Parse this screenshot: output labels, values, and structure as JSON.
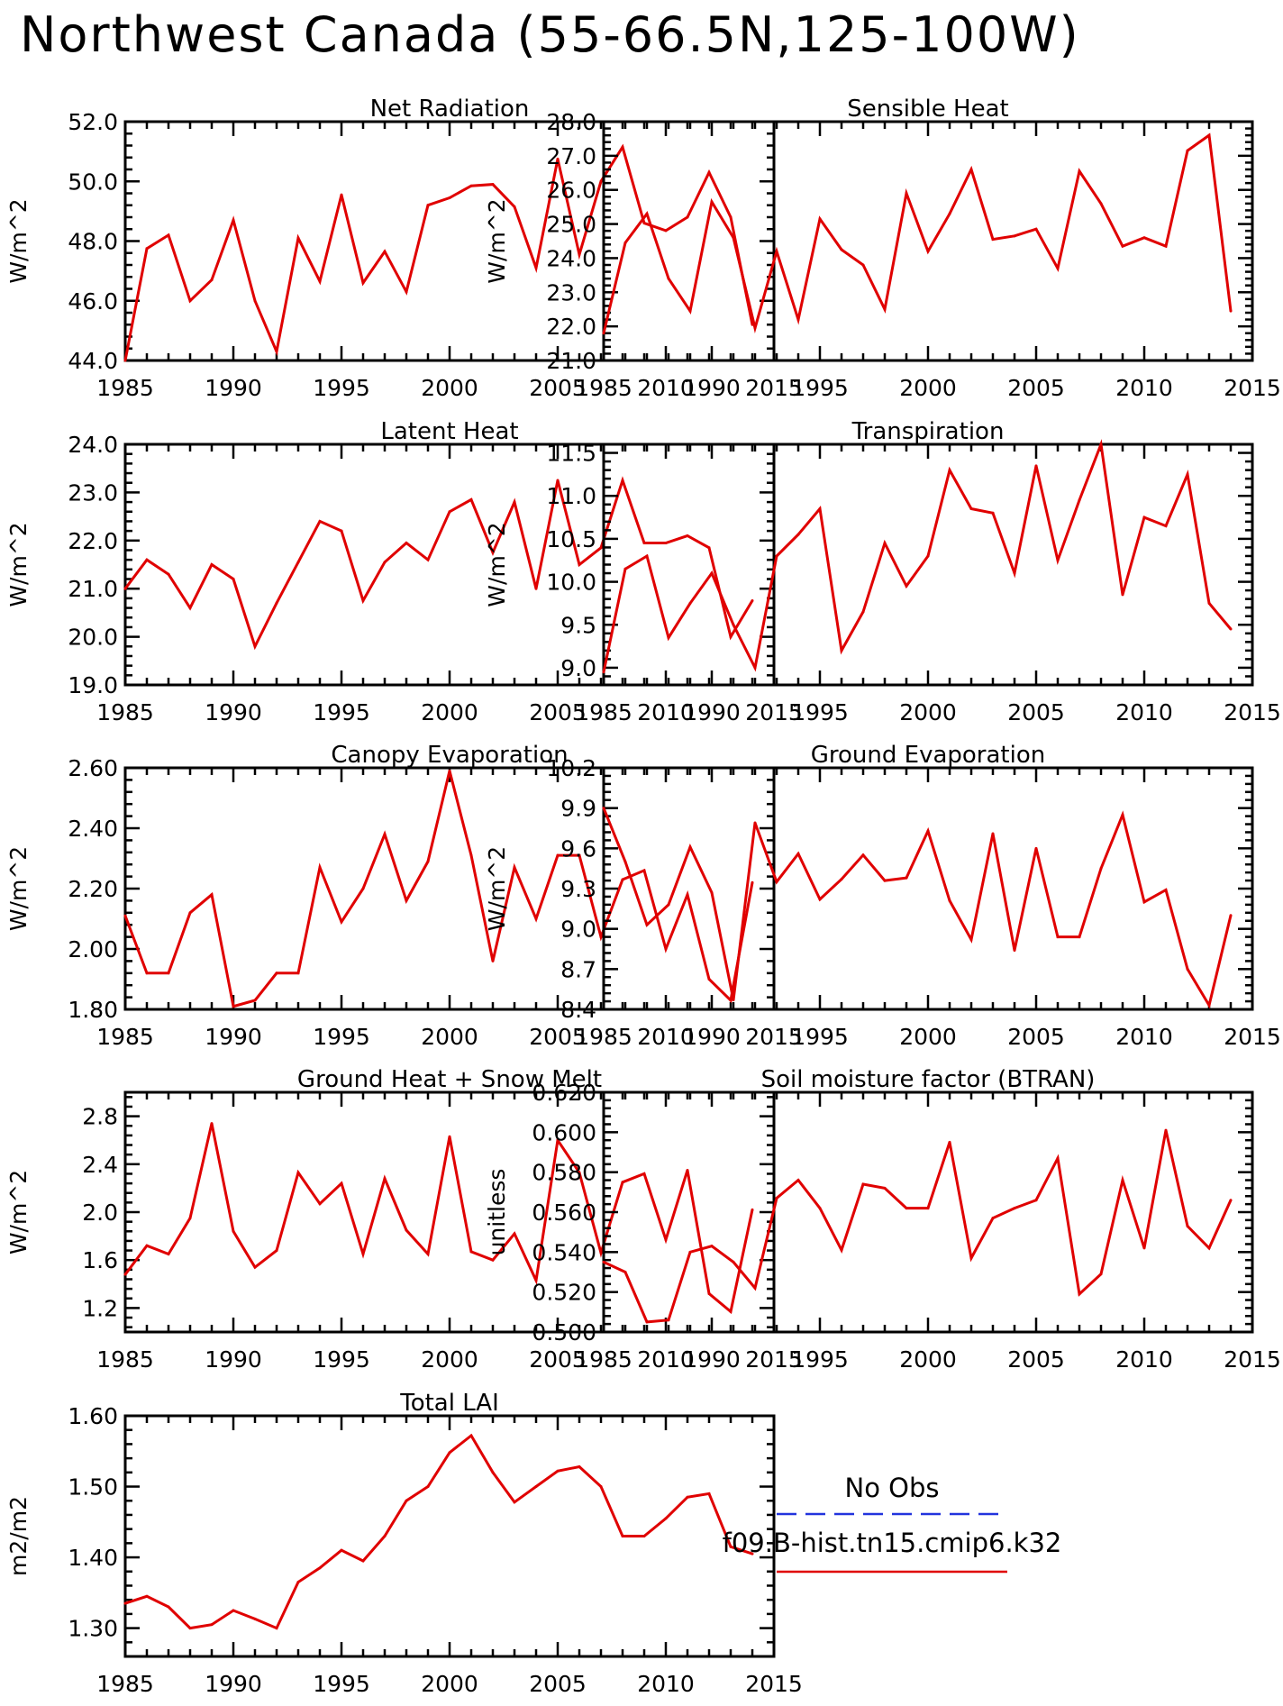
{
  "page": {
    "title": "Northwest Canada (55-66.5N,125-100W)"
  },
  "legend": [
    {
      "label": "No Obs",
      "color": "#2233dd",
      "dash": true
    },
    {
      "label": "f09.B-hist.tn15.cmip6.k32",
      "color": "#e00000",
      "dash": false
    }
  ],
  "series_color": "#e00000",
  "chart_data": [
    {
      "type": "line",
      "title": "Net Radiation",
      "ylabel": "W/m^2",
      "xlim": [
        1985,
        2015
      ],
      "ylim": [
        44.0,
        52.0
      ],
      "xticks": [
        1985,
        1990,
        1995,
        2000,
        2005,
        2010,
        2015
      ],
      "yticks": [
        44.0,
        46.0,
        48.0,
        50.0,
        52.0
      ],
      "ytick_labels": [
        "44.0",
        "46.0",
        "48.0",
        "50.0",
        "52.0"
      ],
      "x_start": 1985,
      "values": [
        44.0,
        47.75,
        48.2,
        46.0,
        46.7,
        48.7,
        46.0,
        44.3,
        48.1,
        46.65,
        49.55,
        46.6,
        47.65,
        46.3,
        49.2,
        49.45,
        49.85,
        49.9,
        49.15,
        47.1,
        50.75,
        47.55,
        50.0,
        51.15,
        48.6,
        48.35,
        48.8,
        50.3,
        48.8,
        45.2
      ]
    },
    {
      "type": "line",
      "title": "Sensible Heat",
      "ylabel": "W/m^2",
      "xlim": [
        1985,
        2015
      ],
      "ylim": [
        21.0,
        28.0
      ],
      "xticks": [
        1985,
        1990,
        1995,
        2000,
        2005,
        2010,
        2015
      ],
      "yticks": [
        21.0,
        22.0,
        23.0,
        24.0,
        25.0,
        26.0,
        27.0,
        28.0
      ],
      "ytick_labels": [
        "21.0",
        "22.0",
        "23.0",
        "24.0",
        "25.0",
        "26.0",
        "27.0",
        "28.0"
      ],
      "x_start": 1985,
      "values": [
        21.8,
        24.45,
        25.3,
        23.4,
        22.45,
        25.65,
        24.6,
        21.95,
        24.2,
        22.2,
        25.15,
        24.25,
        23.8,
        22.5,
        25.9,
        24.2,
        25.3,
        26.6,
        24.55,
        24.65,
        24.85,
        23.7,
        26.55,
        25.6,
        24.35,
        24.6,
        24.35,
        27.15,
        27.6,
        22.45
      ]
    },
    {
      "type": "line",
      "title": "Latent Heat",
      "ylabel": "W/m^2",
      "xlim": [
        1985,
        2015
      ],
      "ylim": [
        19.0,
        24.0
      ],
      "xticks": [
        1985,
        1990,
        1995,
        2000,
        2005,
        2010,
        2015
      ],
      "yticks": [
        19.0,
        20.0,
        21.0,
        22.0,
        23.0,
        24.0
      ],
      "ytick_labels": [
        "19.0",
        "20.0",
        "21.0",
        "22.0",
        "23.0",
        "24.0"
      ],
      "x_start": 1985,
      "values": [
        21.0,
        21.6,
        21.3,
        20.6,
        21.5,
        21.2,
        19.8,
        20.7,
        21.55,
        22.4,
        22.2,
        20.75,
        21.55,
        21.95,
        21.6,
        22.6,
        22.85,
        21.75,
        22.8,
        21.0,
        23.25,
        21.5,
        21.85,
        23.25,
        21.95,
        21.95,
        22.1,
        21.85,
        20.0,
        20.75
      ]
    },
    {
      "type": "line",
      "title": "Transpiration",
      "ylabel": "W/m^2",
      "xlim": [
        1985,
        2015
      ],
      "ylim": [
        8.8,
        11.6
      ],
      "xticks": [
        1985,
        1990,
        1995,
        2000,
        2005,
        2010,
        2015
      ],
      "yticks": [
        9.0,
        9.5,
        10.0,
        10.5,
        11.0,
        11.5
      ],
      "ytick_labels": [
        "9.0",
        "9.5",
        "10.0",
        "10.5",
        "11.0",
        "11.5"
      ],
      "x_start": 1985,
      "values": [
        8.95,
        10.15,
        10.3,
        9.35,
        9.75,
        10.1,
        9.5,
        9.0,
        10.3,
        10.55,
        10.85,
        9.2,
        9.65,
        10.45,
        9.95,
        10.3,
        11.3,
        10.85,
        10.8,
        10.1,
        11.35,
        10.25,
        10.95,
        11.6,
        9.85,
        10.75,
        10.65,
        11.25,
        9.75,
        9.45
      ]
    },
    {
      "type": "line",
      "title": "Canopy Evaporation",
      "ylabel": "W/m^2",
      "xlim": [
        1985,
        2015
      ],
      "ylim": [
        1.8,
        2.6
      ],
      "xticks": [
        1985,
        1990,
        1995,
        2000,
        2005,
        2010,
        2015
      ],
      "yticks": [
        1.8,
        2.0,
        2.2,
        2.4,
        2.6
      ],
      "ytick_labels": [
        "1.80",
        "2.00",
        "2.20",
        "2.40",
        "2.60"
      ],
      "x_start": 1985,
      "values": [
        2.11,
        1.92,
        1.92,
        2.12,
        2.18,
        1.81,
        1.83,
        1.92,
        1.92,
        2.27,
        2.09,
        2.2,
        2.38,
        2.16,
        2.29,
        2.59,
        2.31,
        1.96,
        2.27,
        2.1,
        2.31,
        2.31,
        2.04,
        2.23,
        2.26,
        2.0,
        2.18,
        1.9,
        1.83,
        2.22
      ]
    },
    {
      "type": "line",
      "title": "Ground Evaporation",
      "ylabel": "W/m^2",
      "xlim": [
        1985,
        2015
      ],
      "ylim": [
        8.4,
        10.2
      ],
      "xticks": [
        1985,
        1990,
        1995,
        2000,
        2005,
        2010,
        2015
      ],
      "yticks": [
        8.4,
        8.7,
        9.0,
        9.3,
        9.6,
        9.9,
        10.2
      ],
      "ytick_labels": [
        "8.4",
        "8.7",
        "9.0",
        "9.3",
        "9.6",
        "9.9",
        "10.2"
      ],
      "x_start": 1985,
      "values": [
        9.9,
        9.5,
        9.03,
        9.18,
        9.61,
        9.27,
        8.47,
        9.79,
        9.35,
        9.56,
        9.22,
        9.37,
        9.55,
        9.36,
        9.38,
        9.73,
        9.21,
        8.92,
        9.71,
        8.84,
        9.6,
        8.94,
        8.94,
        9.45,
        9.85,
        9.2,
        9.29,
        8.7,
        8.43,
        9.1
      ]
    },
    {
      "type": "line",
      "title": "Ground Heat + Snow Melt",
      "ylabel": "W/m^2",
      "xlim": [
        1985,
        2015
      ],
      "ylim": [
        1.0,
        3.0
      ],
      "xticks": [
        1985,
        1990,
        1995,
        2000,
        2005,
        2010,
        2015
      ],
      "yticks": [
        1.2,
        1.6,
        2.0,
        2.4,
        2.8
      ],
      "ytick_labels": [
        "1.2",
        "1.6",
        "2.0",
        "2.4",
        "2.8"
      ],
      "x_start": 1985,
      "values": [
        1.48,
        1.72,
        1.65,
        1.95,
        2.74,
        1.84,
        1.54,
        1.68,
        2.33,
        2.07,
        2.24,
        1.65,
        2.28,
        1.85,
        1.65,
        2.63,
        1.67,
        1.6,
        1.82,
        1.43,
        2.6,
        2.33,
        1.66,
        2.25,
        2.32,
        1.77,
        2.35,
        1.32,
        1.17,
        2.02
      ]
    },
    {
      "type": "line",
      "title": "Soil moisture factor (BTRAN)",
      "ylabel": "unitless",
      "xlim": [
        1985,
        2015
      ],
      "ylim": [
        0.5,
        0.62
      ],
      "xticks": [
        1985,
        1990,
        1995,
        2000,
        2005,
        2010,
        2015
      ],
      "yticks": [
        0.5,
        0.52,
        0.54,
        0.56,
        0.58,
        0.6,
        0.62
      ],
      "ytick_labels": [
        "0.500",
        "0.520",
        "0.540",
        "0.560",
        "0.580",
        "0.600",
        "0.620"
      ],
      "x_start": 1985,
      "values": [
        0.535,
        0.53,
        0.505,
        0.506,
        0.54,
        0.543,
        0.535,
        0.522,
        0.567,
        0.576,
        0.562,
        0.541,
        0.574,
        0.572,
        0.562,
        0.562,
        0.595,
        0.537,
        0.557,
        0.562,
        0.566,
        0.587,
        0.519,
        0.529,
        0.576,
        0.542,
        0.601,
        0.553,
        0.542,
        0.566
      ]
    },
    {
      "type": "line",
      "title": "Total LAI",
      "ylabel": "m2/m2",
      "xlim": [
        1985,
        2015
      ],
      "ylim": [
        1.26,
        1.6
      ],
      "xticks": [
        1985,
        1990,
        1995,
        2000,
        2005,
        2010,
        2015
      ],
      "yticks": [
        1.3,
        1.4,
        1.5,
        1.6
      ],
      "ytick_labels": [
        "1.30",
        "1.40",
        "1.50",
        "1.60"
      ],
      "x_start": 1985,
      "values": [
        1.335,
        1.345,
        1.33,
        1.3,
        1.305,
        1.325,
        1.313,
        1.3,
        1.365,
        1.385,
        1.41,
        1.395,
        1.43,
        1.48,
        1.5,
        1.548,
        1.572,
        1.52,
        1.478,
        1.5,
        1.522,
        1.528,
        1.5,
        1.43,
        1.43,
        1.455,
        1.485,
        1.49,
        1.415,
        1.405
      ]
    }
  ]
}
